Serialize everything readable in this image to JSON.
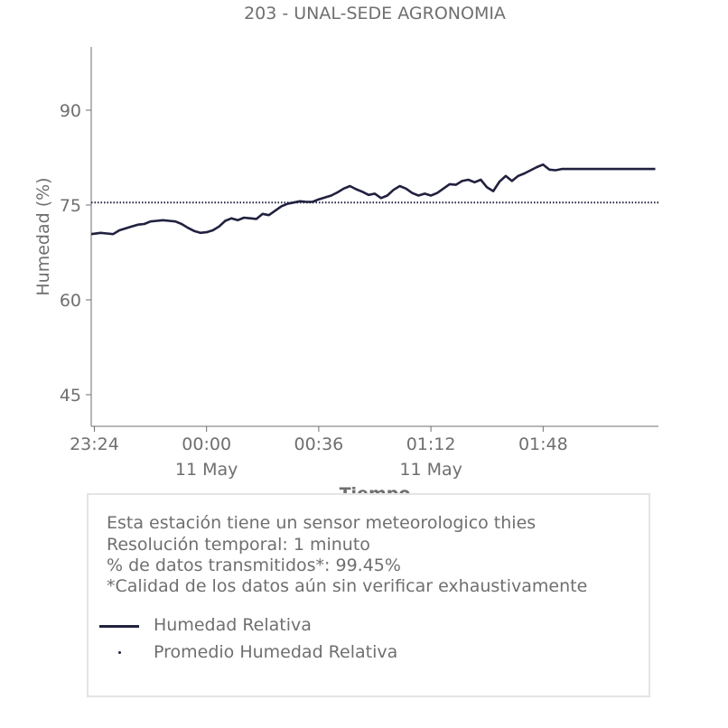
{
  "chart_data": {
    "type": "line",
    "title": "203 - UNAL-SEDE AGRONOMIA",
    "xlabel": "Tiempo",
    "ylabel": "Humedad (%)",
    "ylim": [
      40,
      100
    ],
    "x_range_minutes": [
      -37,
      145
    ],
    "y_ticks": [
      45,
      60,
      75,
      90
    ],
    "x_ticks": [
      {
        "minute": -36,
        "label": "23:24",
        "sublabel": ""
      },
      {
        "minute": 0,
        "label": "00:00",
        "sublabel": "11 May"
      },
      {
        "minute": 36,
        "label": "00:36",
        "sublabel": ""
      },
      {
        "minute": 72,
        "label": "01:12",
        "sublabel": "11 May"
      },
      {
        "minute": 108,
        "label": "01:48",
        "sublabel": ""
      }
    ],
    "series": [
      {
        "name": "Humedad Relativa",
        "color": "#21213f",
        "style": "solid",
        "x": [
          -37,
          -34,
          -32,
          -30,
          -28,
          -26,
          -24,
          -22,
          -20,
          -18,
          -16,
          -14,
          -12,
          -10,
          -8,
          -6,
          -4,
          -2,
          0,
          2,
          4,
          6,
          8,
          10,
          12,
          14,
          16,
          18,
          20,
          22,
          24,
          26,
          28,
          30,
          32,
          34,
          36,
          38,
          40,
          42,
          44,
          46,
          48,
          50,
          52,
          54,
          56,
          58,
          60,
          62,
          64,
          66,
          68,
          70,
          72,
          74,
          76,
          78,
          80,
          82,
          84,
          86,
          88,
          90,
          92,
          94,
          96,
          98,
          100,
          102,
          104,
          106,
          108,
          110,
          112,
          114,
          116,
          118,
          120,
          122,
          124,
          126,
          128,
          130,
          132,
          134,
          136,
          138,
          140,
          142,
          144
        ],
        "values": [
          70.4,
          70.6,
          70.5,
          70.4,
          71.0,
          71.3,
          71.6,
          71.9,
          72.0,
          72.4,
          72.5,
          72.6,
          72.5,
          72.4,
          72.0,
          71.4,
          70.9,
          70.6,
          70.7,
          71.0,
          71.6,
          72.5,
          72.9,
          72.6,
          73.0,
          72.9,
          72.8,
          73.6,
          73.4,
          74.1,
          74.8,
          75.2,
          75.4,
          75.6,
          75.5,
          75.5,
          75.9,
          76.2,
          76.5,
          77.0,
          77.6,
          78.0,
          77.5,
          77.1,
          76.6,
          76.8,
          76.1,
          76.5,
          77.4,
          78.0,
          77.6,
          76.9,
          76.5,
          76.8,
          76.5,
          76.9,
          77.6,
          78.3,
          78.2,
          78.8,
          79.0,
          78.6,
          79.0,
          77.8,
          77.2,
          78.7,
          79.6,
          78.8,
          79.6,
          80.0,
          80.5,
          81.0,
          81.4,
          80.6,
          80.5,
          80.7,
          80.7,
          80.7,
          80.7,
          80.7,
          80.7,
          80.7,
          80.7,
          80.7,
          80.7,
          80.7,
          80.7,
          80.7,
          80.7,
          80.7,
          80.7
        ]
      },
      {
        "name": "Promedio Humedad Relativa",
        "color": "#21213f",
        "style": "dotted",
        "values_constant": 75.4
      }
    ],
    "grid": false,
    "legend_placement": "below"
  },
  "info": {
    "line1": "Esta estación tiene un sensor meteorologico thies",
    "line2": "Resolución temporal: 1 minuto",
    "line3": "% de datos transmitidos*: 99.45%",
    "line4": "*Calidad de los datos aún sin verificar exhaustivamente"
  },
  "legend": {
    "item1": "Humedad Relativa",
    "item2": "Promedio Humedad Relativa"
  }
}
